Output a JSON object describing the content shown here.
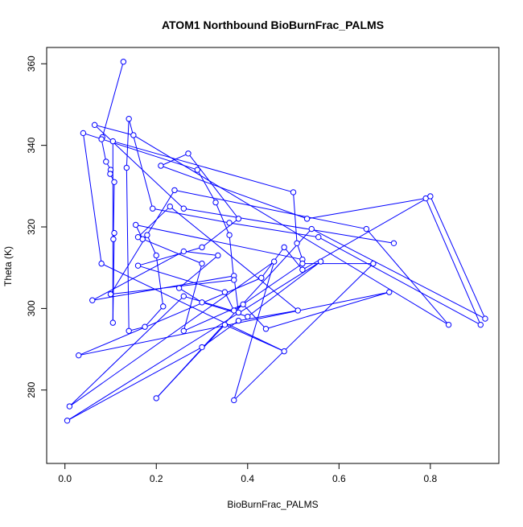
{
  "chart_data": {
    "type": "line",
    "title": "ATOM1 Northbound BioBurnFrac_PALMS",
    "xlabel": "BioBurnFrac_PALMS",
    "ylabel": "Theta (K)",
    "xlim": [
      -0.04,
      0.95
    ],
    "ylim": [
      262,
      364
    ],
    "xticks": [
      0.0,
      0.2,
      0.4,
      0.6,
      0.8
    ],
    "xtick_labels": [
      "0.0",
      "0.2",
      "0.4",
      "0.6",
      "0.8"
    ],
    "yticks": [
      280,
      300,
      320,
      340,
      360
    ],
    "ytick_labels": [
      "280",
      "300",
      "320",
      "340",
      "360"
    ],
    "grid": false,
    "legend": "none",
    "marker": "open-circle",
    "color": "#0000ff",
    "series": [
      {
        "x": [
          0.128,
          0.082,
          0.08,
          0.09,
          0.1,
          0.099,
          0.108,
          0.106,
          0.108,
          0.105,
          0.105,
          0.5,
          0.508,
          0.52,
          0.155,
          0.17,
          0.18,
          0.2,
          0.215,
          0.175,
          0.14,
          0.135,
          0.14,
          0.192,
          0.36,
          0.555,
          0.91,
          0.79,
          0.53,
          0.21,
          0.27,
          0.38,
          0.3,
          0.16,
          0.35,
          0.37,
          0.52,
          0.675,
          0.37,
          0.458,
          0.01,
          0.26,
          0.38,
          0.37,
          0.06,
          0.26,
          0.335,
          0.25,
          0.3,
          0.4,
          0.56,
          0.005,
          0.3,
          0.38,
          0.51,
          0.23,
          0.16,
          0.3,
          0.26,
          0.39,
          0.44,
          0.71,
          0.03,
          0.43,
          0.48,
          0.52,
          0.8,
          0.92,
          0.54,
          0.2,
          0.35,
          0.48,
          0.08,
          0.04,
          0.29,
          0.33,
          0.36,
          0.37,
          0.1,
          0.24,
          0.66,
          0.84,
          0.15,
          0.065,
          0.26,
          0.72
        ],
        "y": [
          360.5,
          342.0,
          341.5,
          336.0,
          334.0,
          333.0,
          331.0,
          317.0,
          318.5,
          296.5,
          341.0,
          328.5,
          316.0,
          312.0,
          320.5,
          317.0,
          318.0,
          313.0,
          300.5,
          295.5,
          294.5,
          334.5,
          346.5,
          324.5,
          321.0,
          317.5,
          296.0,
          327.0,
          322.0,
          335.0,
          338.0,
          322.0,
          315.0,
          310.5,
          304.0,
          299.5,
          311.0,
          311.0,
          277.5,
          311.5,
          276.0,
          303.0,
          299.0,
          308.0,
          302.0,
          314.0,
          313.0,
          305.0,
          301.5,
          298.0,
          311.5,
          272.5,
          290.5,
          297.0,
          299.5,
          325.0,
          317.5,
          311.0,
          294.5,
          301.0,
          295.0,
          304.0,
          288.5,
          307.5,
          315.0,
          309.5,
          327.5,
          297.5,
          319.5,
          278.0,
          296.0,
          289.5,
          311.0,
          343.0,
          334.0,
          326.0,
          318.0,
          307.0,
          303.5,
          329.0,
          319.5,
          296.0,
          342.5,
          345.0,
          324.5,
          316.0
        ]
      }
    ]
  }
}
